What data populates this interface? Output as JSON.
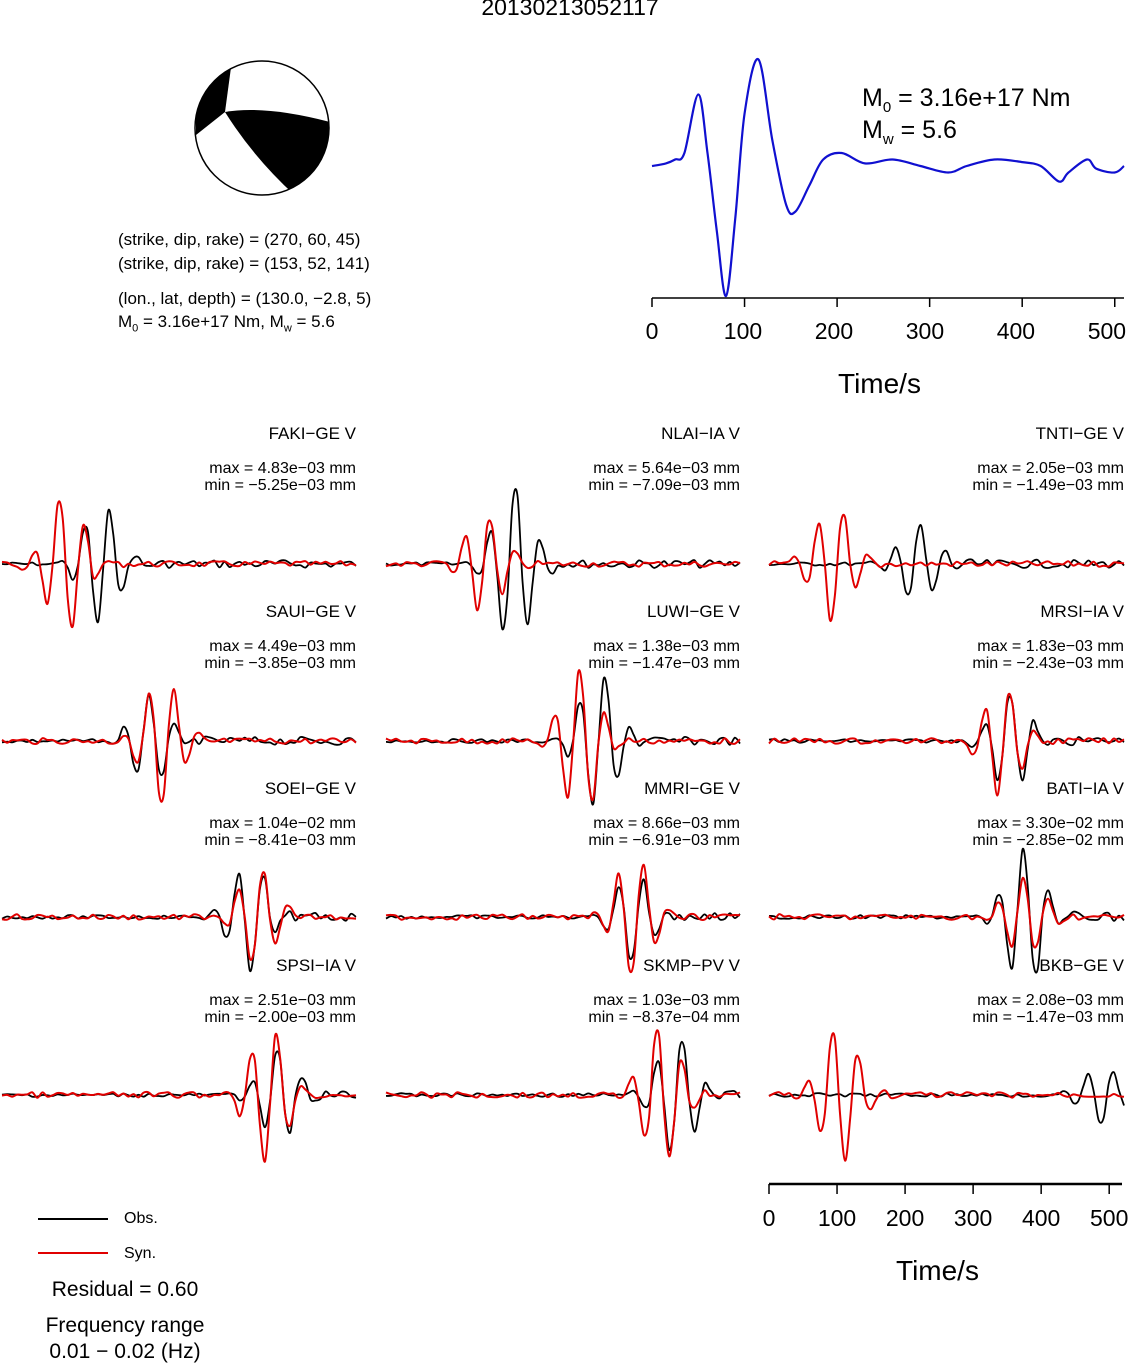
{
  "title": "20130213052117",
  "focal_mechanism": {
    "plane1": "(strike, dip, rake) = (270, 60, 45)",
    "plane2": "(strike, dip, rake) = (153, 52, 141)",
    "location": "(lon., lat, depth) = (130.0, −2.8, 5)",
    "moment_prefix": "M",
    "moment_sub": "0",
    "moment_mid": " = 3.16e+17 Nm, M",
    "magnitude_sub": "w",
    "magnitude_tail": " = 5.6"
  },
  "stf_panel": {
    "m0_label": "M",
    "m0_sub": "0",
    "m0_value": " = 3.16e+17 Nm",
    "mw_label": "M",
    "mw_sub": "w",
    "mw_value": " = 5.6",
    "xlabel": "Time/s",
    "xticks": [
      "0",
      "100",
      "200",
      "300",
      "400",
      "500"
    ]
  },
  "waveform_axis": {
    "xlabel": "Time/s",
    "xticks": [
      "0",
      "100",
      "200",
      "300",
      "400",
      "500"
    ]
  },
  "legend": {
    "obs": "Obs.",
    "syn": "Syn.",
    "obs_color": "#000000",
    "syn_color": "#e00000"
  },
  "residual": "Residual = 0.60",
  "freq_label": "Frequency range",
  "freq_value": "0.01 − 0.02 (Hz)",
  "stations": [
    {
      "name": "FAKI−GE V",
      "max": "max = 4.83e−03 mm",
      "min": "min = −5.25e−03 mm"
    },
    {
      "name": "NLAI−IA V",
      "max": "max = 5.64e−03 mm",
      "min": "min = −7.09e−03 mm"
    },
    {
      "name": "TNTI−GE V",
      "max": "max = 2.05e−03 mm",
      "min": "min = −1.49e−03 mm"
    },
    {
      "name": "SAUI−GE V",
      "max": "max = 4.49e−03 mm",
      "min": "min = −3.85e−03 mm"
    },
    {
      "name": "LUWI−GE V",
      "max": "max = 1.38e−03 mm",
      "min": "min = −1.47e−03 mm"
    },
    {
      "name": "MRSI−IA V",
      "max": "max = 1.83e−03 mm",
      "min": "min = −2.43e−03 mm"
    },
    {
      "name": "SOEI−GE V",
      "max": "max = 1.04e−02 mm",
      "min": "min = −8.41e−03 mm"
    },
    {
      "name": "MMRI−GE V",
      "max": "max = 8.66e−03 mm",
      "min": "min = −6.91e−03 mm"
    },
    {
      "name": "BATI−IA V",
      "max": "max = 3.30e−02 mm",
      "min": "min = −2.85e−02 mm"
    },
    {
      "name": "SPSI−IA V",
      "max": "max = 2.51e−03 mm",
      "min": "min = −2.00e−03 mm"
    },
    {
      "name": "SKMP−PV V",
      "max": "max = 1.03e−03 mm",
      "min": "min = −8.37e−04 mm"
    },
    {
      "name": "BKB−GE V",
      "max": "max = 2.08e−03 mm",
      "min": "min = −1.47e−03 mm"
    }
  ],
  "chart_data": {
    "type": "line",
    "title": "20130213052117",
    "stf": {
      "xlabel": "Time/s",
      "xlim": [
        0,
        510
      ],
      "color": "#1010d0",
      "x": [
        0,
        15,
        25,
        35,
        50,
        60,
        70,
        80,
        90,
        100,
        115,
        130,
        145,
        155,
        170,
        185,
        205,
        230,
        260,
        290,
        320,
        340,
        370,
        400,
        420,
        440,
        450,
        470,
        480,
        500,
        510
      ],
      "y": [
        0.0,
        0.02,
        0.05,
        0.1,
        0.55,
        0.1,
        -0.5,
        -1.0,
        -0.4,
        0.4,
        0.82,
        0.2,
        -0.3,
        -0.35,
        -0.15,
        0.05,
        0.1,
        0.02,
        0.05,
        0.0,
        -0.05,
        0.0,
        0.05,
        0.03,
        0.0,
        -0.12,
        -0.05,
        0.05,
        -0.02,
        -0.05,
        0.0
      ]
    },
    "waveform_xlim": [
      0,
      510
    ],
    "waveform_xlabel": "Time/s",
    "series": [
      {
        "name": "Obs.",
        "color": "#000000"
      },
      {
        "name": "Syn.",
        "color": "#e00000"
      }
    ]
  }
}
